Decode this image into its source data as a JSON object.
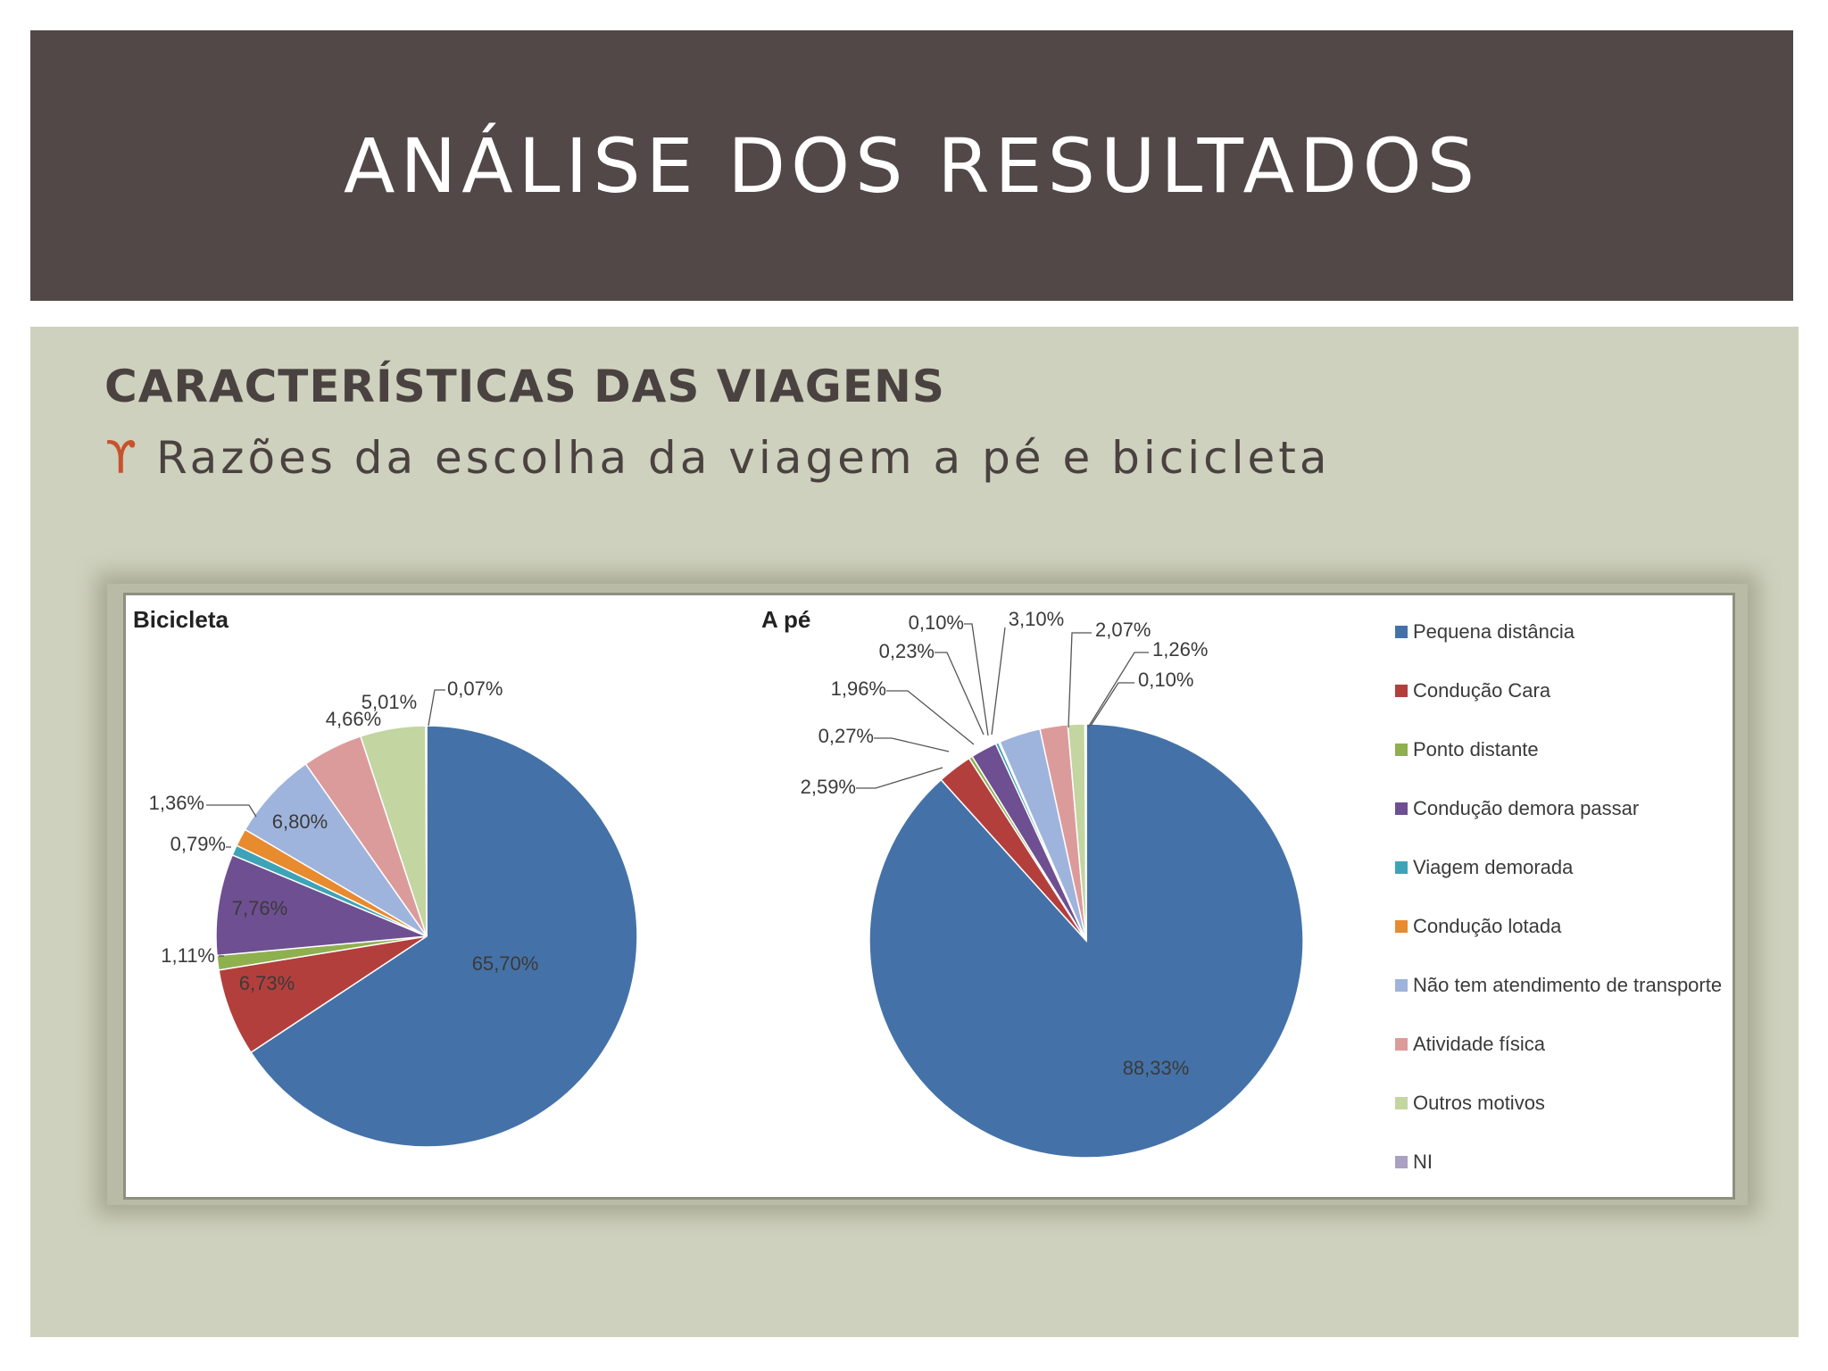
{
  "slide": {
    "title": "ANÁLISE DOS RESULTADOS",
    "subtitle": "CARACTERÍSTICAS DAS VIAGENS",
    "bullet_icon": "ϒ",
    "bullet_text": "Razões da escolha da viagem a pé e bicicleta"
  },
  "colors": {
    "header_bg": "#524848",
    "content_bg": "#ced1bd",
    "bullet": "#c8522e"
  },
  "chart_data": [
    {
      "type": "pie",
      "title": "Bicicleta",
      "categories": [
        "Pequena distância",
        "Condução Cara",
        "Ponto distante",
        "Condução demora passar",
        "Viagem demorada",
        "Condução lotada",
        "Não tem atendimento de transporte",
        "Atividade física",
        "Outros motivos",
        "NI"
      ],
      "values": [
        65.7,
        6.73,
        1.11,
        7.76,
        0.79,
        1.36,
        6.8,
        4.66,
        5.01,
        0.07
      ],
      "labels": [
        "65,70%",
        "6,73%",
        "1,11%",
        "7,76%",
        "0,79%",
        "1,36%",
        "6,80%",
        "4,66%",
        "5,01%",
        "0,07%"
      ]
    },
    {
      "type": "pie",
      "title": "A pé",
      "categories": [
        "Pequena distância",
        "Condução Cara",
        "Ponto distante",
        "Condução demora passar",
        "Viagem demorada",
        "Condução lotada",
        "Não tem atendimento de transporte",
        "Atividade física",
        "Outros motivos",
        "NI"
      ],
      "values": [
        88.33,
        2.59,
        0.27,
        1.96,
        0.23,
        0.1,
        3.1,
        2.07,
        1.26,
        0.1
      ],
      "labels": [
        "88,33%",
        "2,59%",
        "0,27%",
        "1,96%",
        "0,23%",
        "0,10%",
        "3,10%",
        "2,07%",
        "1,26%",
        "0,10%"
      ]
    }
  ],
  "legend": [
    {
      "label": "Pequena distância",
      "color": "#4472a8"
    },
    {
      "label": "Condução Cara",
      "color": "#b33f3d"
    },
    {
      "label": "Ponto distante",
      "color": "#8fb04e"
    },
    {
      "label": "Condução demora passar",
      "color": "#6e4f91"
    },
    {
      "label": "Viagem demorada",
      "color": "#3ea3b7"
    },
    {
      "label": "Condução lotada",
      "color": "#e88a2e"
    },
    {
      "label": "Não tem atendimento de transporte",
      "color": "#9fb4dc"
    },
    {
      "label": "Atividade física",
      "color": "#dc9b9b"
    },
    {
      "label": "Outros motivos",
      "color": "#c3d5a0"
    },
    {
      "label": "NI",
      "color": "#a9a0c2"
    }
  ]
}
